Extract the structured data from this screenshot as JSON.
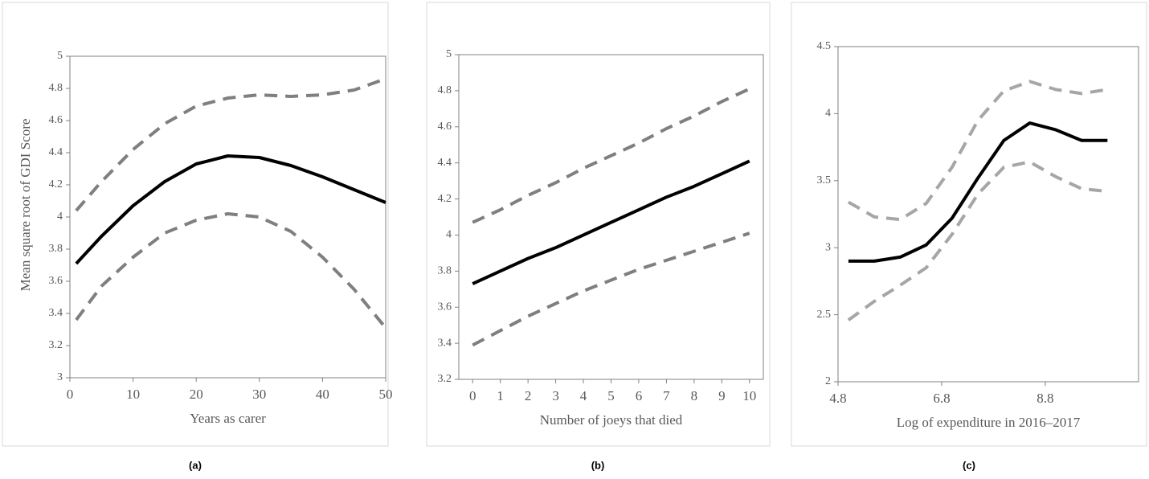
{
  "chart_data": [
    {
      "type": "line",
      "caption": "(a)",
      "xlabel": "Years as carer",
      "ylabel": "Mean square root of GDI Score",
      "x": [
        1,
        5,
        10,
        15,
        20,
        25,
        30,
        35,
        40,
        45,
        50
      ],
      "xlim": [
        0,
        50
      ],
      "xticks": [
        0,
        10,
        20,
        30,
        40,
        50
      ],
      "ylim": [
        3,
        5
      ],
      "yticks": [
        3,
        3.2,
        3.4,
        3.6,
        3.8,
        4,
        4.2,
        4.4,
        4.6,
        4.8,
        5
      ],
      "series": [
        {
          "color": "#000000",
          "dashed": false,
          "values": [
            3.71,
            3.88,
            4.07,
            4.22,
            4.33,
            4.38,
            4.37,
            4.32,
            4.25,
            4.17,
            4.09
          ]
        },
        {
          "color": "#7f7f7f",
          "dashed": true,
          "values": [
            4.04,
            4.22,
            4.42,
            4.58,
            4.69,
            4.74,
            4.76,
            4.75,
            4.76,
            4.79,
            4.86
          ]
        },
        {
          "color": "#7f7f7f",
          "dashed": true,
          "values": [
            3.36,
            3.57,
            3.75,
            3.9,
            3.98,
            4.02,
            4.0,
            3.91,
            3.75,
            3.55,
            3.31
          ]
        }
      ]
    },
    {
      "type": "line",
      "caption": "(b)",
      "xlabel": "Number of joeys that died",
      "x": [
        0,
        1,
        2,
        3,
        4,
        5,
        6,
        7,
        8,
        9,
        10
      ],
      "xlim": [
        -0.5,
        10.5
      ],
      "xticks": [
        0,
        1,
        2,
        3,
        4,
        5,
        6,
        7,
        8,
        9,
        10
      ],
      "ylim": [
        3.2,
        5
      ],
      "yticks": [
        3.2,
        3.4,
        3.6,
        3.8,
        4,
        4.2,
        4.4,
        4.6,
        4.8,
        5
      ],
      "series": [
        {
          "color": "#000000",
          "dashed": false,
          "values": [
            3.73,
            3.8,
            3.87,
            3.93,
            4.0,
            4.07,
            4.14,
            4.21,
            4.27,
            4.34,
            4.41
          ]
        },
        {
          "color": "#7f7f7f",
          "dashed": true,
          "values": [
            4.07,
            4.14,
            4.22,
            4.29,
            4.37,
            4.44,
            4.51,
            4.59,
            4.66,
            4.74,
            4.81
          ]
        },
        {
          "color": "#7f7f7f",
          "dashed": true,
          "values": [
            3.39,
            3.47,
            3.55,
            3.62,
            3.69,
            3.75,
            3.81,
            3.86,
            3.91,
            3.96,
            4.01
          ]
        }
      ]
    },
    {
      "type": "line",
      "caption": "(c)",
      "xlabel": "Log of expenditure in 2016–2017",
      "x": [
        5,
        5.5,
        6,
        6.5,
        7,
        7.5,
        8,
        8.5,
        9,
        9.5,
        10
      ],
      "xlim": [
        4.8,
        10.6
      ],
      "xticks": [
        4.8,
        6.8,
        8.8
      ],
      "ylim": [
        2,
        4.5
      ],
      "yticks": [
        2,
        2.5,
        3,
        3.5,
        4,
        4.5
      ],
      "series": [
        {
          "color": "#000000",
          "dashed": false,
          "values": [
            2.9,
            2.9,
            2.93,
            3.02,
            3.22,
            3.52,
            3.8,
            3.93,
            3.88,
            3.8,
            3.8
          ]
        },
        {
          "color": "#a6a6a6",
          "dashed": true,
          "values": [
            3.34,
            3.23,
            3.21,
            3.33,
            3.6,
            3.95,
            4.17,
            4.24,
            4.18,
            4.15,
            4.18
          ]
        },
        {
          "color": "#a6a6a6",
          "dashed": true,
          "values": [
            2.46,
            2.6,
            2.72,
            2.85,
            3.1,
            3.4,
            3.6,
            3.64,
            3.53,
            3.44,
            3.42
          ]
        }
      ]
    }
  ]
}
